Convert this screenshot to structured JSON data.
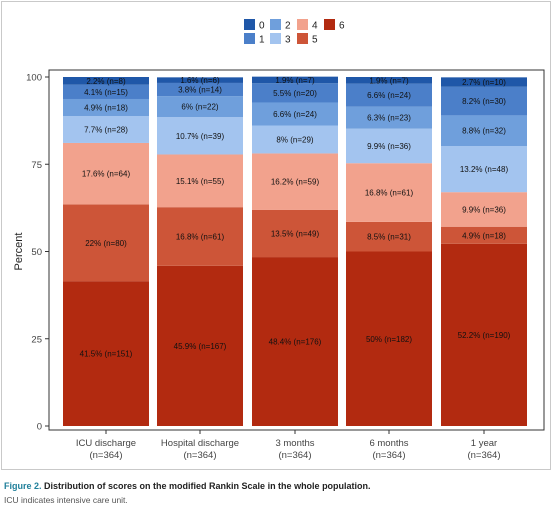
{
  "chart_data": {
    "type": "bar",
    "stacked": true,
    "ylabel": "Percent",
    "ylim": [
      0,
      100
    ],
    "yticks": [
      0,
      25,
      50,
      75,
      100
    ],
    "categories": [
      [
        "ICU discharge",
        "(n=364)"
      ],
      [
        "Hospital discharge",
        "(n=364)"
      ],
      [
        "3 months",
        "(n=364)"
      ],
      [
        "6 months",
        "(n=364)"
      ],
      [
        "1 year",
        "(n=364)"
      ]
    ],
    "series": [
      {
        "name": "6",
        "color": "#b22a10",
        "values": [
          41.5,
          45.9,
          48.4,
          50,
          52.2
        ],
        "labels": [
          "41.5% (n=151)",
          "45.9% (n=167)",
          "48.4% (n=176)",
          "50% (n=182)",
          "52.2% (n=190)"
        ]
      },
      {
        "name": "5",
        "color": "#cd5538",
        "values": [
          22,
          16.8,
          13.5,
          8.5,
          4.9
        ],
        "labels": [
          "22% (n=80)",
          "16.8% (n=61)",
          "13.5% (n=49)",
          "8.5% (n=31)",
          "4.9% (n=18)"
        ]
      },
      {
        "name": "4",
        "color": "#f2a28d",
        "values": [
          17.6,
          15.1,
          16.2,
          16.8,
          9.9
        ],
        "labels": [
          "17.6% (n=64)",
          "15.1% (n=55)",
          "16.2% (n=59)",
          "16.8% (n=61)",
          "9.9% (n=36)"
        ]
      },
      {
        "name": "3",
        "color": "#a3c4ef",
        "values": [
          7.7,
          10.7,
          8,
          9.9,
          13.2
        ],
        "labels": [
          "7.7% (n=28)",
          "10.7% (n=39)",
          "8% (n=29)",
          "9.9% (n=36)",
          "13.2% (n=48)"
        ]
      },
      {
        "name": "2",
        "color": "#6f9fdc",
        "values": [
          4.9,
          6,
          6.6,
          6.3,
          8.8
        ],
        "labels": [
          "4.9% (n=18)",
          "6% (n=22)",
          "6.6% (n=24)",
          "6.3% (n=23)",
          "8.8% (n=32)"
        ]
      },
      {
        "name": "1",
        "color": "#4b7fc9",
        "values": [
          4.1,
          3.8,
          5.5,
          6.6,
          8.2
        ],
        "labels": [
          "4.1% (n=15)",
          "3.8% (n=14)",
          "5.5% (n=20)",
          "6.6% (n=24)",
          "8.2% (n=30)"
        ]
      },
      {
        "name": "0",
        "color": "#1f57a8",
        "values": [
          2.2,
          1.6,
          1.9,
          1.9,
          2.7
        ],
        "labels": [
          "2.2% (n=8)",
          "1.6% (n=6)",
          "1.9% (n=7)",
          "1.9% (n=7)",
          "2.7% (n=10)"
        ]
      }
    ],
    "legend": {
      "placement": "top",
      "entries": [
        "0",
        "1",
        "2",
        "3",
        "4",
        "5",
        "6"
      ]
    },
    "grid": false
  },
  "caption": {
    "figure_label": "Figure 2.",
    "title": "Distribution of scores on the modified Rankin Scale in the whole population.",
    "note": "ICU indicates intensive care unit."
  }
}
